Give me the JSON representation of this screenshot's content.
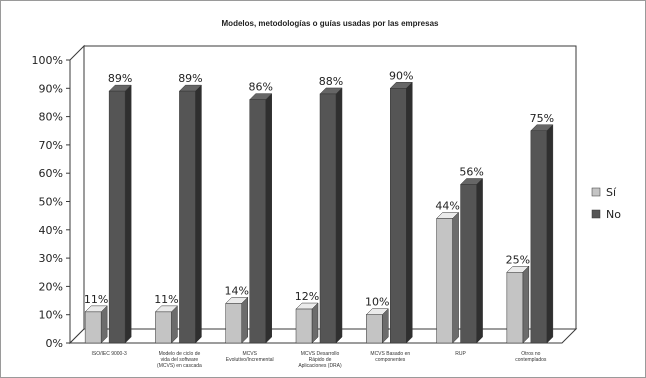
{
  "chart_data": {
    "type": "bar",
    "title": "Modelos, metodologías o guías usadas por las empresas",
    "categories": [
      [
        "ISO/IEC 9000-3"
      ],
      [
        "Modelo de ciclo de",
        "vida del software",
        "(MCVS) en cascada"
      ],
      [
        "MCVS",
        "Evolutivo/Incremental"
      ],
      [
        "MCVS Desarrollo",
        "Rápido de",
        "Aplicaciones (DRA)"
      ],
      [
        "MCVS Basado en",
        "componentes"
      ],
      [
        "RUP"
      ],
      [
        "Otros no",
        "contemplados"
      ]
    ],
    "series": [
      {
        "name": "Sí",
        "values": [
          11,
          11,
          14,
          12,
          10,
          44,
          25
        ],
        "labels": [
          "11%",
          "11%",
          "14%",
          "12%",
          "10%",
          "44%",
          "25%"
        ]
      },
      {
        "name": "No",
        "values": [
          89,
          89,
          86,
          88,
          90,
          56,
          75
        ],
        "labels": [
          "89%",
          "89%",
          "86%",
          "88%",
          "90%",
          "56%",
          "75%"
        ]
      }
    ],
    "yticks": [
      "0%",
      "10%",
      "20%",
      "30%",
      "40%",
      "50%",
      "60%",
      "70%",
      "80%",
      "90%",
      "100%"
    ],
    "ylim": [
      0,
      100
    ],
    "grid": false,
    "legend_position": "right",
    "colors": {
      "si": "#c4c4c4",
      "no": "#555555"
    }
  }
}
